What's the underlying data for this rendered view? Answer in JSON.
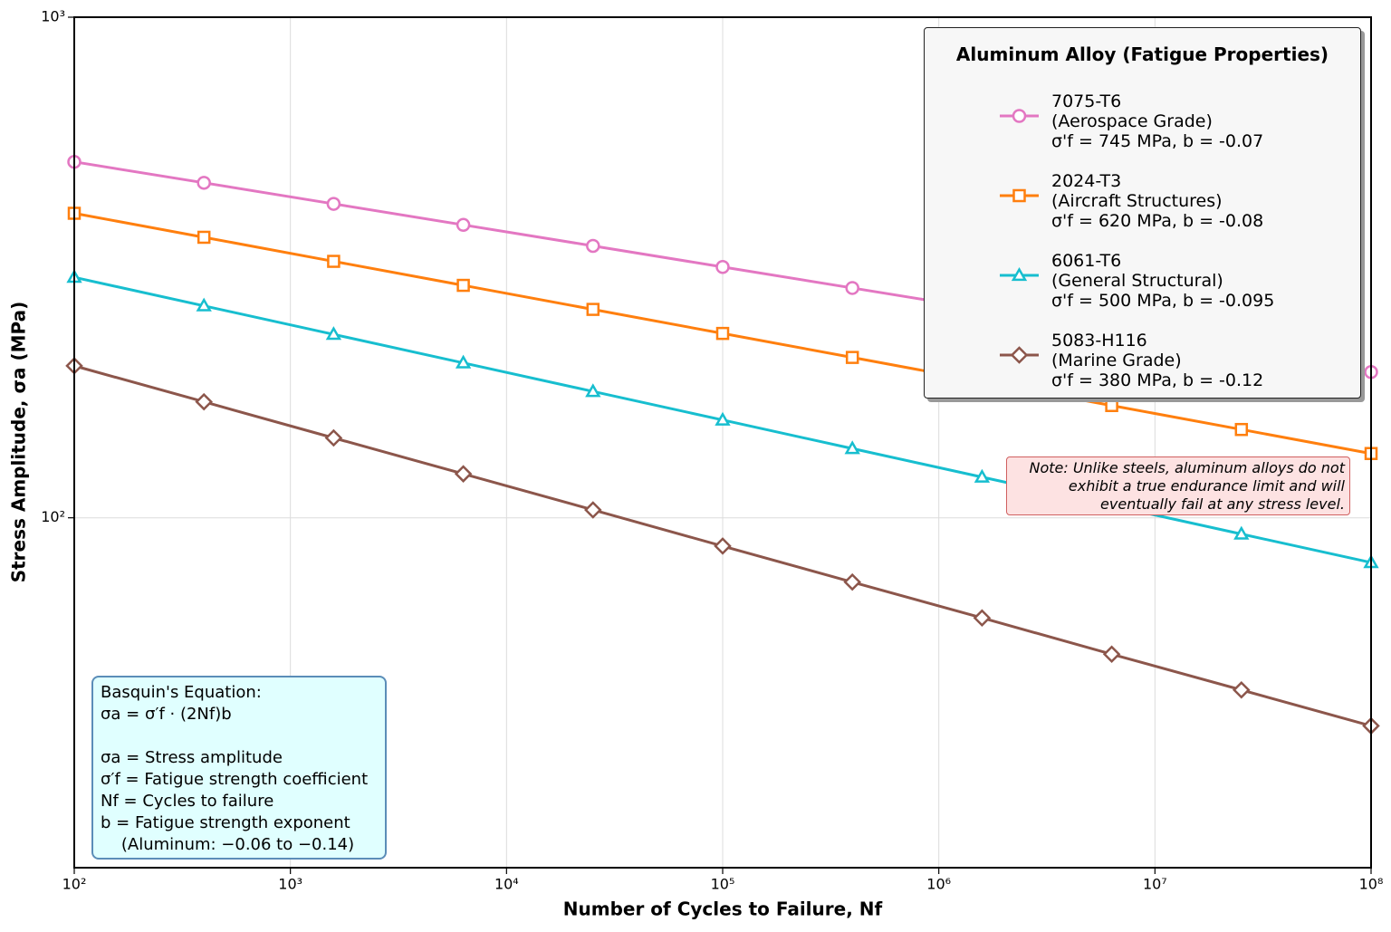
{
  "chart_data": {
    "type": "line",
    "x_label": "Number of Cycles to Failure, Nf",
    "y_label": "Stress Amplitude, σa (MPa)",
    "x_log": true,
    "y_log": true,
    "grid": true,
    "xlim": [
      100,
      100000000
    ],
    "ylim": [
      20,
      1000
    ],
    "xticks": [
      {
        "value": 100,
        "label": "10²"
      },
      {
        "value": 1000,
        "label": "10³"
      },
      {
        "value": 10000,
        "label": "10⁴"
      },
      {
        "value": 100000,
        "label": "10⁵"
      },
      {
        "value": 1000000,
        "label": "10⁶"
      },
      {
        "value": 10000000,
        "label": "10⁷"
      },
      {
        "value": 100000000,
        "label": "10⁸"
      }
    ],
    "yticks": [
      {
        "value": 100,
        "label": "10²"
      },
      {
        "value": 1000,
        "label": "10³"
      }
    ],
    "x": [
      100,
      398.1,
      1584.9,
      6309.6,
      25118.9,
      100000,
      398107,
      1584893,
      6309573,
      25118864,
      100000000
    ],
    "legend_title": "Aluminum Alloy (Fatigue Properties)",
    "legend_position": "upper right",
    "series": [
      {
        "name": "7075-T6\n(Aerospace Grade)\nσ'f = 745 MPa, b = -0.07",
        "color": "#e377c2",
        "marker": "circle",
        "values": [
          514.1,
          466.9,
          423.8,
          384.7,
          349.3,
          317.0,
          287.8,
          261.3,
          237.2,
          215.3,
          195.5
        ]
      },
      {
        "name": "2024-T3\n(Aircraft Structures)\nσ'f = 620 MPa, b = -0.08",
        "color": "#ff7f0e",
        "marker": "square",
        "values": [
          405.8,
          363.4,
          325.3,
          291.3,
          260.8,
          233.5,
          209.1,
          187.2,
          167.6,
          150.1,
          134.4
        ]
      },
      {
        "name": "6061-T6\n(General Structural)\nσ'f = 500 MPa, b = -0.095",
        "color": "#17becf",
        "marker": "triangle",
        "values": [
          302.3,
          265.1,
          232.5,
          203.9,
          178.8,
          156.8,
          137.5,
          120.6,
          105.8,
          92.8,
          81.4
        ]
      },
      {
        "name": "5083-H116\n(Marine Grade)\nσ'f = 380 MPa, b = -0.12",
        "color": "#8c564b",
        "marker": "diamond",
        "values": [
          201.2,
          170.5,
          144.4,
          122.4,
          103.7,
          87.8,
          74.4,
          63.1,
          53.4,
          45.3,
          38.4
        ]
      }
    ],
    "note": "Note: Unlike steels, aluminum alloys do not\nexhibit a true endurance limit and will\neventually fail at any stress level.",
    "equation_box": [
      "Basquin's Equation:",
      "σa = σ′f · (2Nf)b",
      "",
      "σa = Stress amplitude",
      "σ′f = Fatigue strength coefficient",
      "Nf = Cycles to failure",
      "b = Fatigue strength exponent",
      "    (Aluminum: −0.06 to −0.14)"
    ]
  }
}
